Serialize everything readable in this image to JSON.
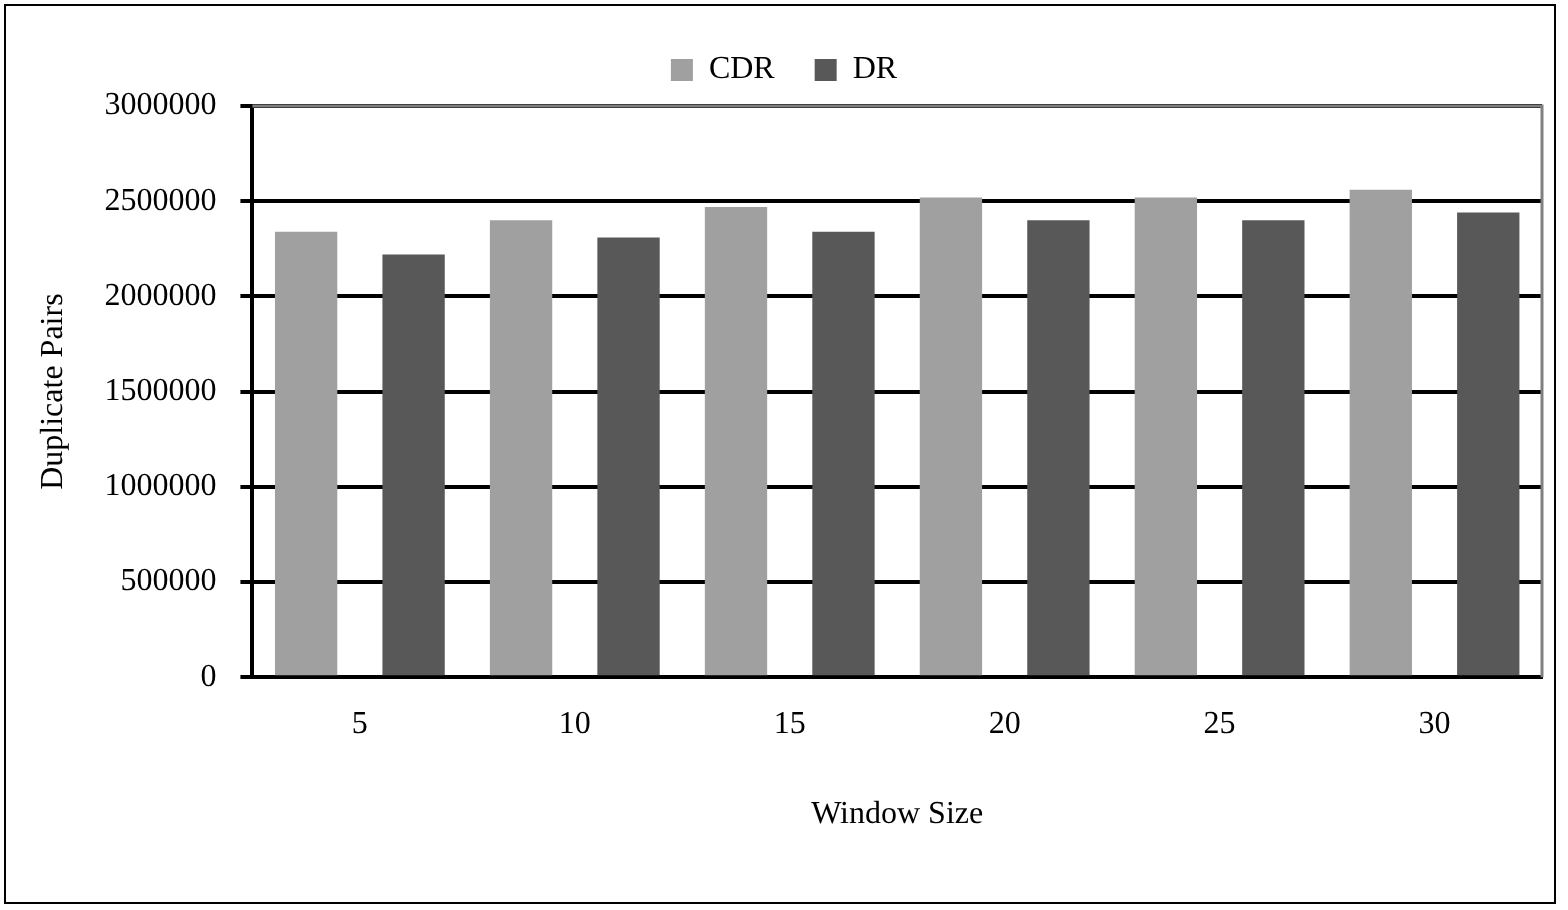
{
  "chart_data": {
    "type": "bar",
    "xlabel": "Window Size",
    "ylabel": "Duplicate Pairs",
    "categories": [
      "5",
      "10",
      "15",
      "20",
      "25",
      "30"
    ],
    "series": [
      {
        "name": "CDR",
        "color": "#a0a0a0",
        "values": [
          2340000,
          2400000,
          2470000,
          2520000,
          2520000,
          2560000
        ]
      },
      {
        "name": "DR",
        "color": "#585858",
        "values": [
          2220000,
          2310000,
          2340000,
          2400000,
          2400000,
          2440000
        ]
      }
    ],
    "ylim": [
      0,
      3000000
    ],
    "yticks": [
      0,
      500000,
      1000000,
      1500000,
      2000000,
      2500000,
      3000000
    ],
    "grid": "y",
    "legend": "top"
  }
}
